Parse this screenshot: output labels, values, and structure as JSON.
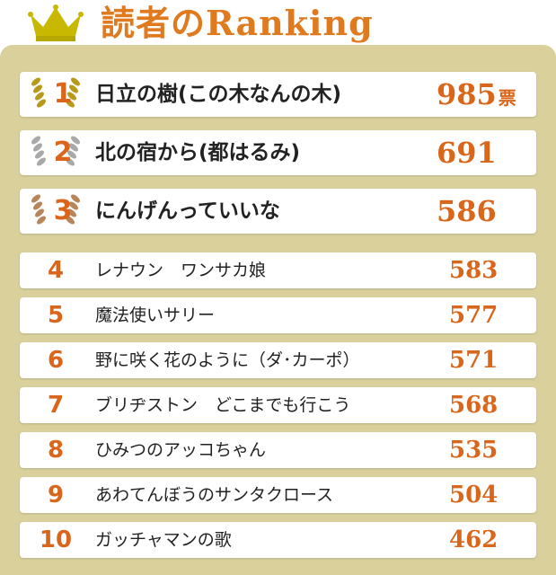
{
  "header": {
    "title": "読者のRanking"
  },
  "table": {
    "rows": [
      {
        "rank": 1,
        "title": "日立の樹(この木なんの木)",
        "votes": 985,
        "unit": "票"
      },
      {
        "rank": 2,
        "title": "北の宿から(都はるみ)",
        "votes": 691
      },
      {
        "rank": 3,
        "title": "にんげんっていいな",
        "votes": 586
      },
      {
        "rank": 4,
        "title": "レナウン　ワンサカ娘",
        "votes": 583
      },
      {
        "rank": 5,
        "title": "魔法使いサリー",
        "votes": 577
      },
      {
        "rank": 6,
        "title": "野に咲く花のように（ダ･カーポ）",
        "votes": 571
      },
      {
        "rank": 7,
        "title": "ブリヂストン　どこまでも行こう",
        "votes": 568
      },
      {
        "rank": 8,
        "title": "ひみつのアッコちゃん",
        "votes": 535
      },
      {
        "rank": 9,
        "title": "あわてんぼうのサンタクロース",
        "votes": 504
      },
      {
        "rank": 10,
        "title": "ガッチャマンの歌",
        "votes": 462
      }
    ]
  }
}
